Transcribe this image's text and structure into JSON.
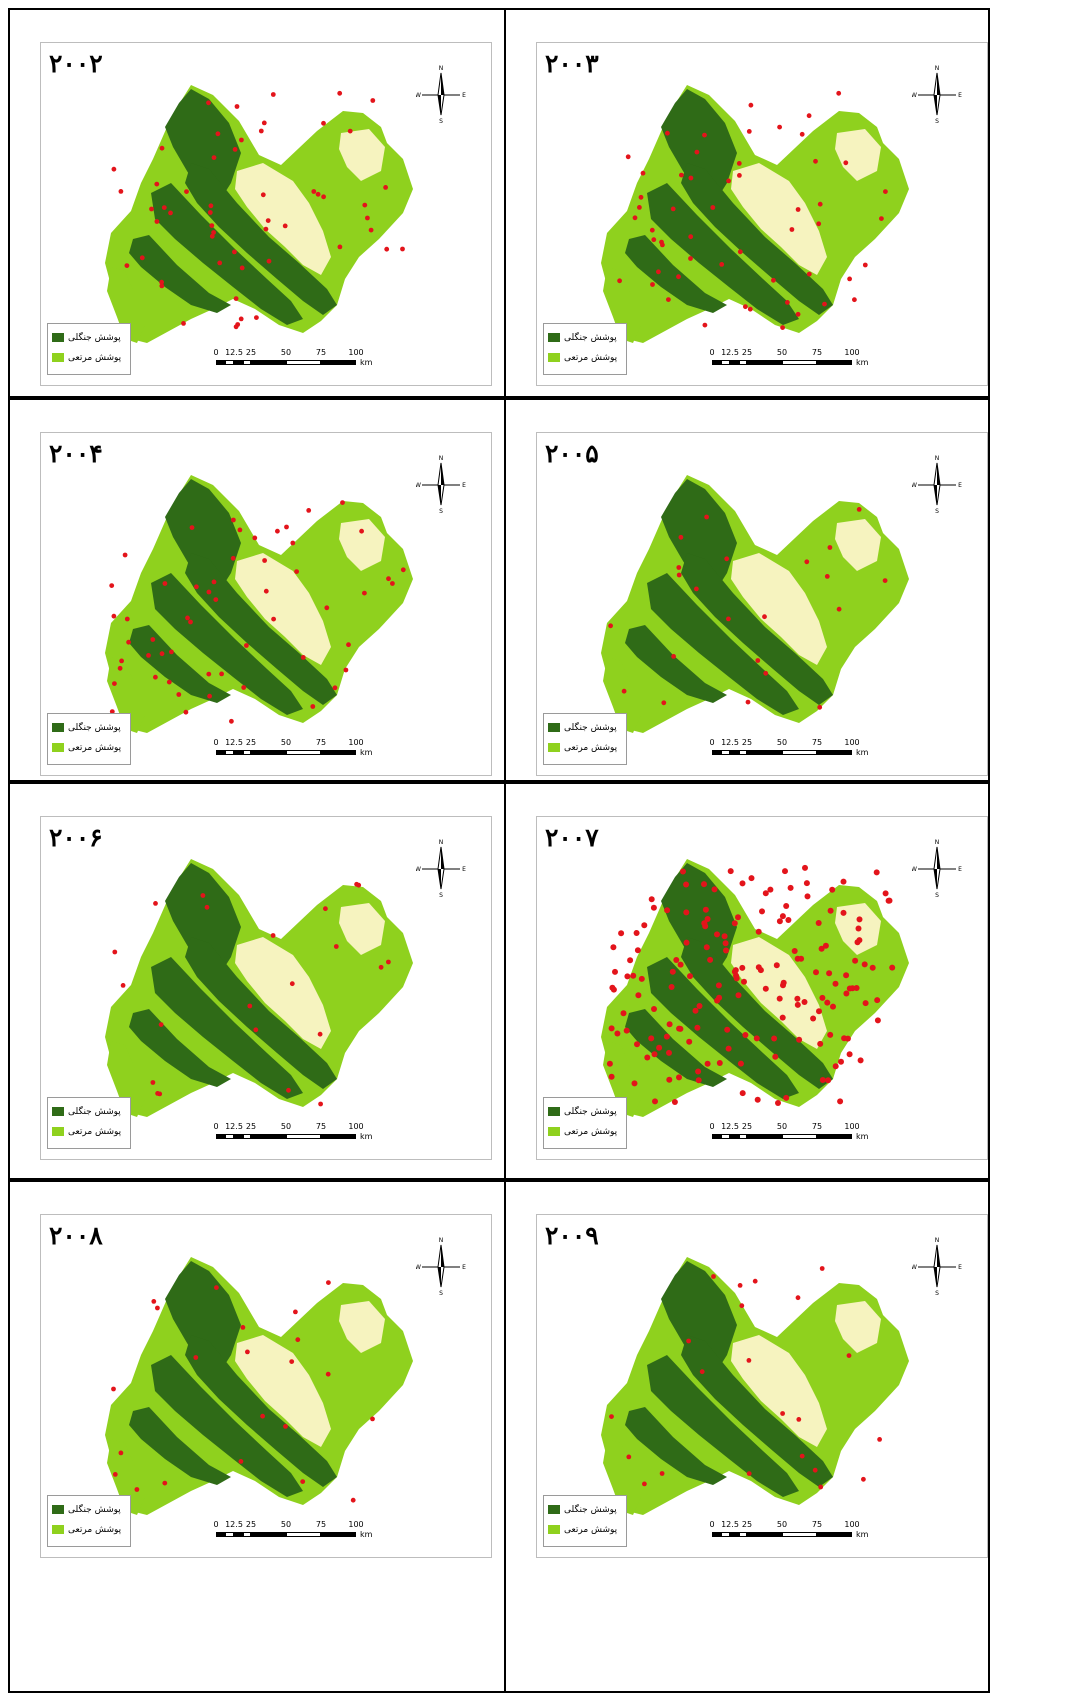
{
  "panels": [
    {
      "year": "۲۰۰۲",
      "fires": "medium"
    },
    {
      "year": "۲۰۰۳",
      "fires": "medium"
    },
    {
      "year": "۲۰۰۴",
      "fires": "medium"
    },
    {
      "year": "۲۰۰۵",
      "fires": "low"
    },
    {
      "year": "۲۰۰۶",
      "fires": "low"
    },
    {
      "year": "۲۰۰۷",
      "fires": "high"
    },
    {
      "year": "۲۰۰۸",
      "fires": "low"
    },
    {
      "year": "۲۰۰۹",
      "fires": "low"
    }
  ],
  "legend": {
    "forest_label": "پوشش جنگلی",
    "range_label": "پوشش مرتعی"
  },
  "scale": {
    "ticks": [
      "0",
      "12.5",
      "25",
      "50",
      "75",
      "100"
    ],
    "unit": "km"
  },
  "colors": {
    "forest": "#2f6b17",
    "range": "#8fd11e",
    "barren": "#f6f3bf",
    "fire_point": "#e3141b"
  },
  "icons": {
    "north_arrow": "north-arrow-icon"
  }
}
